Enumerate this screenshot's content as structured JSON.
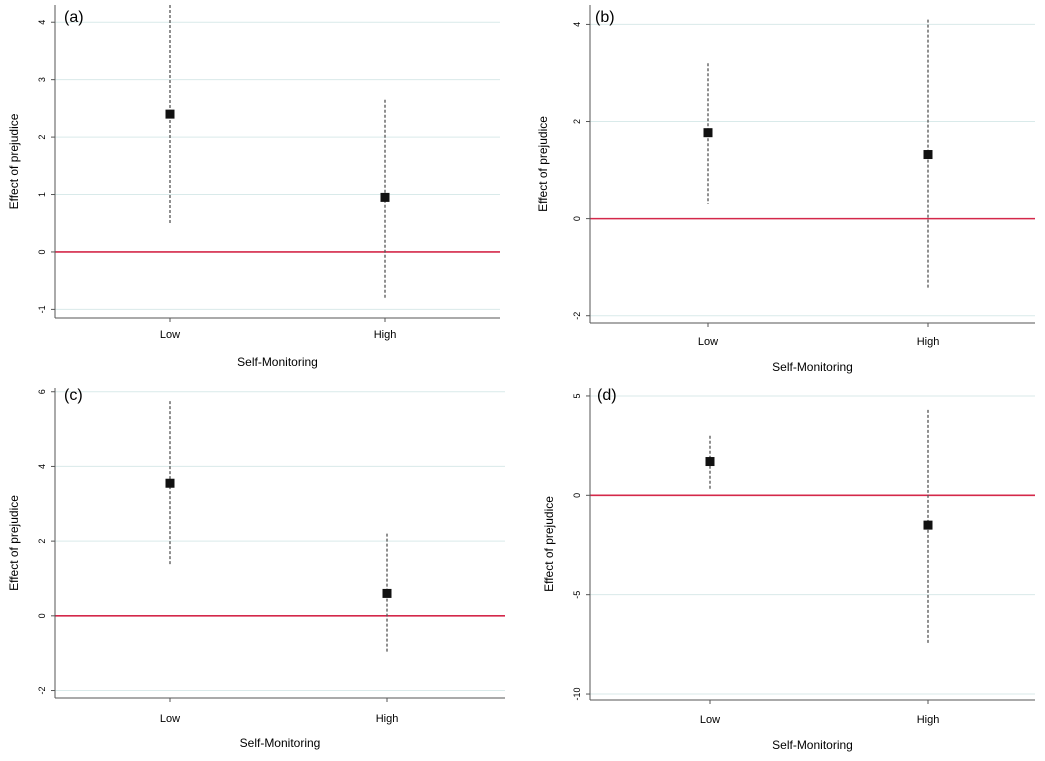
{
  "chart_data": [
    {
      "type": "scatter",
      "panel_label": "(a)",
      "xlabel": "Self-Monitoring",
      "ylabel": "Effect of prejudice",
      "categories": [
        "Low",
        "High"
      ],
      "yticks": [
        -1,
        0,
        1,
        2,
        3,
        4
      ],
      "ylim": [
        -1.15,
        4.3
      ],
      "reference_line": 0,
      "series": [
        {
          "values": [
            2.4,
            0.95
          ],
          "ci_lower": [
            0.47,
            -0.8
          ],
          "ci_upper": [
            4.3,
            2.65
          ]
        }
      ],
      "grid": true
    },
    {
      "type": "scatter",
      "panel_label": "(b)",
      "xlabel": "Self-Monitoring",
      "ylabel": "Effect of prejudice",
      "categories": [
        "Low",
        "High"
      ],
      "yticks": [
        -2,
        0,
        2,
        4
      ],
      "ylim": [
        -2.15,
        4.4
      ],
      "reference_line": 0,
      "series": [
        {
          "values": [
            1.77,
            1.32
          ],
          "ci_lower": [
            0.3,
            -1.45
          ],
          "ci_upper": [
            3.2,
            4.1
          ]
        }
      ],
      "grid": true
    },
    {
      "type": "scatter",
      "panel_label": "(c)",
      "xlabel": "Self-Monitoring",
      "ylabel": "Effect of prejudice",
      "categories": [
        "Low",
        "High"
      ],
      "yticks": [
        -2,
        0,
        2,
        4,
        6
      ],
      "ylim": [
        -2.2,
        6.1
      ],
      "reference_line": 0,
      "series": [
        {
          "values": [
            3.55,
            0.6
          ],
          "ci_lower": [
            1.35,
            -1.0
          ],
          "ci_upper": [
            5.75,
            2.2
          ]
        }
      ],
      "grid": true
    },
    {
      "type": "scatter",
      "panel_label": "(d)",
      "xlabel": "Self-Monitoring",
      "ylabel": "Effect of prejudice",
      "categories": [
        "Low",
        "High"
      ],
      "yticks": [
        -10,
        -5,
        0,
        5
      ],
      "ylim": [
        -10.3,
        5.4
      ],
      "reference_line": 0,
      "series": [
        {
          "values": [
            1.7,
            -1.5
          ],
          "ci_lower": [
            0.3,
            -7.5
          ],
          "ci_upper": [
            3.0,
            4.3
          ]
        }
      ],
      "grid": true
    }
  ],
  "colors": {
    "reference_line": "#d4284a",
    "grid": "#d9eaea",
    "axis": "#555555",
    "marker": "#111111",
    "ci": "#555555"
  }
}
